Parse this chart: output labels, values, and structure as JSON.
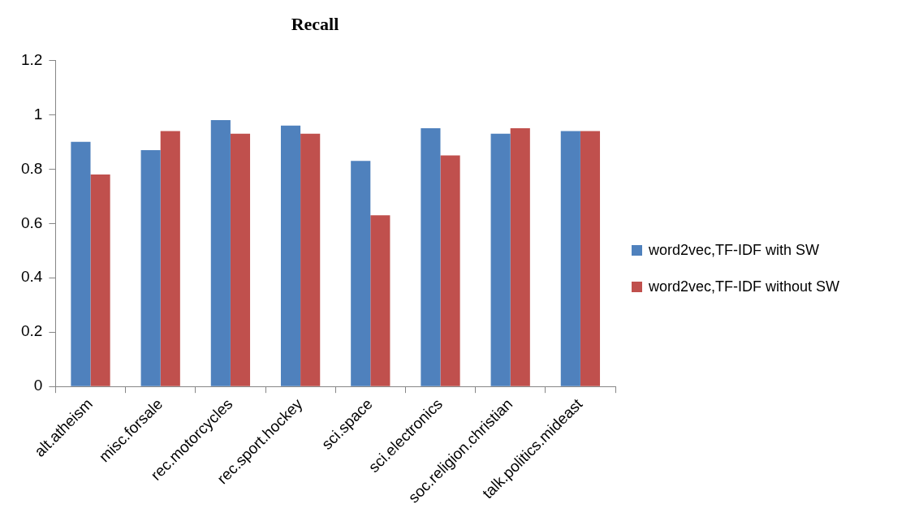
{
  "chart_data": {
    "type": "bar",
    "title": "Recall",
    "categories": [
      "alt.atheism",
      "misc.forsale",
      "rec.motorcycles",
      "rec.sport.hockey",
      "sci.space",
      "sci.electronics",
      "soc.religion.christian",
      "talk.politics.mideast"
    ],
    "series": [
      {
        "name": "word2vec,TF-IDF with SW",
        "color": "#4f81bd",
        "values": [
          0.9,
          0.87,
          0.98,
          0.96,
          0.83,
          0.95,
          0.93,
          0.94
        ]
      },
      {
        "name": "word2vec,TF-IDF without SW",
        "color": "#c0504d",
        "values": [
          0.78,
          0.94,
          0.93,
          0.93,
          0.63,
          0.85,
          0.95,
          0.94
        ]
      }
    ],
    "ylim": [
      0,
      1.2
    ],
    "yticks": [
      0,
      0.2,
      0.4,
      0.6,
      0.8,
      1,
      1.2
    ],
    "grid": false,
    "legend": "right"
  }
}
